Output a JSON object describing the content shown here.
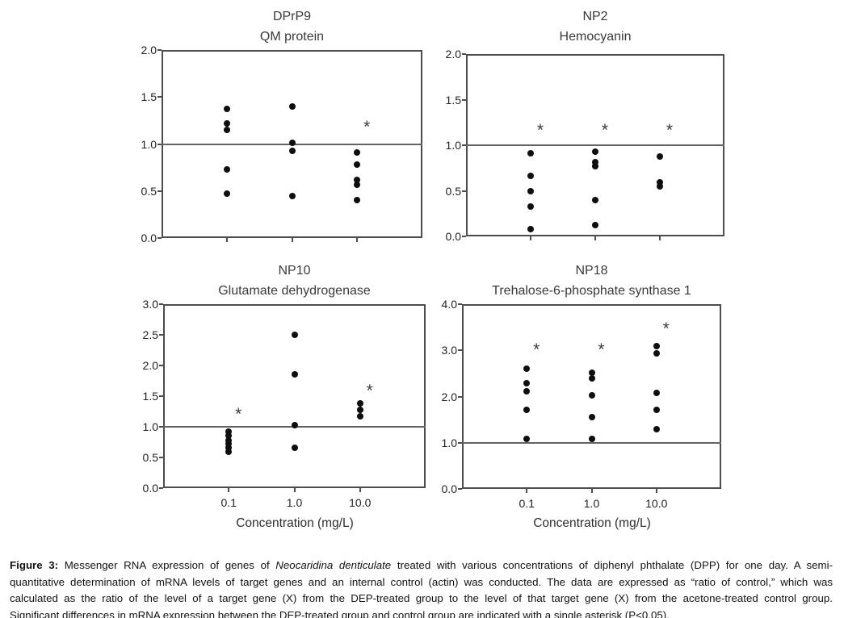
{
  "colors": {
    "background": "#ffffff",
    "axis": "#4d4d4d",
    "reference_line": "#636363",
    "dot": "#0e0e0e",
    "text": "#222222",
    "title": "#3a3a3a"
  },
  "chart_data": [
    {
      "id": "DPrP9",
      "type": "scatter",
      "title": "DPrP9",
      "subtitle": "QM protein",
      "categories": [
        "0.1",
        "1.0",
        "10.0"
      ],
      "ylim": [
        0.0,
        2.0
      ],
      "yticks": [
        0.0,
        0.5,
        1.0,
        1.5,
        2.0
      ],
      "ytick_labels": [
        "0.0",
        "0.5",
        "1.0",
        "1.5",
        "2.0"
      ],
      "reference_line": 1.0,
      "x_tick_labels_visible": false,
      "xlabel": "",
      "series": [
        {
          "category": "0.1",
          "values": [
            1.37,
            1.22,
            1.15,
            0.73,
            0.47
          ]
        },
        {
          "category": "1.0",
          "values": [
            1.4,
            1.01,
            0.93,
            0.45
          ]
        },
        {
          "category": "10.0",
          "values": [
            0.91,
            0.78,
            0.62,
            0.57,
            0.4
          ]
        }
      ],
      "asterisks": [
        {
          "category": "10.0",
          "y": 1.18
        }
      ]
    },
    {
      "id": "NP2",
      "type": "scatter",
      "title": "NP2",
      "subtitle": "Hemocyanin",
      "categories": [
        "0.1",
        "1.0",
        "10.0"
      ],
      "ylim": [
        0.0,
        2.0
      ],
      "yticks": [
        0.0,
        0.5,
        1.0,
        1.5,
        2.0
      ],
      "ytick_labels": [
        "0.0",
        "0.5",
        "1.0",
        "1.5",
        "2.0"
      ],
      "reference_line": 1.0,
      "x_tick_labels_visible": false,
      "xlabel": "",
      "series": [
        {
          "category": "0.1",
          "values": [
            0.91,
            0.66,
            0.5,
            0.33,
            0.08
          ]
        },
        {
          "category": "1.0",
          "values": [
            0.93,
            0.81,
            0.77,
            0.4,
            0.12
          ]
        },
        {
          "category": "10.0",
          "values": [
            0.88,
            0.59,
            0.55
          ]
        }
      ],
      "asterisks": [
        {
          "category": "0.1",
          "y": 1.16
        },
        {
          "category": "1.0",
          "y": 1.16
        },
        {
          "category": "10.0",
          "y": 1.16
        }
      ]
    },
    {
      "id": "NP10",
      "type": "scatter",
      "title": "NP10",
      "subtitle": "Glutamate dehydrogenase",
      "categories": [
        "0.1",
        "1.0",
        "10.0"
      ],
      "ylim": [
        0.0,
        3.0
      ],
      "yticks": [
        0.0,
        0.5,
        1.0,
        1.5,
        2.0,
        2.5,
        3.0
      ],
      "ytick_labels": [
        "0.0",
        "0.5",
        "1.0",
        "1.5",
        "2.0",
        "2.5",
        "3.0"
      ],
      "reference_line": 1.0,
      "x_tick_labels_visible": true,
      "xlabel": "Concentration (mg/L)",
      "series": [
        {
          "category": "0.1",
          "values": [
            0.92,
            0.85,
            0.78,
            0.72,
            0.66,
            0.59
          ]
        },
        {
          "category": "1.0",
          "values": [
            2.5,
            1.85,
            1.02,
            0.66
          ]
        },
        {
          "category": "10.0",
          "values": [
            1.38,
            1.27,
            1.17
          ]
        }
      ],
      "asterisks": [
        {
          "category": "0.1",
          "y": 1.2
        },
        {
          "category": "10.0",
          "y": 1.58
        }
      ]
    },
    {
      "id": "NP18",
      "type": "scatter",
      "title": "NP18",
      "subtitle": "Trehalose-6-phosphate synthase 1",
      "categories": [
        "0.1",
        "1.0",
        "10.0"
      ],
      "ylim": [
        0.0,
        4.0
      ],
      "yticks": [
        0.0,
        1.0,
        2.0,
        3.0,
        4.0
      ],
      "ytick_labels": [
        "0.0",
        "1.0",
        "2.0",
        "3.0",
        "4.0"
      ],
      "reference_line": 1.0,
      "x_tick_labels_visible": true,
      "xlabel": "Concentration (mg/L)",
      "series": [
        {
          "category": "0.1",
          "values": [
            2.6,
            2.28,
            2.12,
            1.72,
            1.08
          ]
        },
        {
          "category": "1.0",
          "values": [
            2.52,
            2.4,
            2.03,
            1.56,
            1.08
          ]
        },
        {
          "category": "10.0",
          "values": [
            3.09,
            2.93,
            2.08,
            1.71,
            1.29
          ]
        }
      ],
      "asterisks": [
        {
          "category": "0.1",
          "y": 3.0
        },
        {
          "category": "1.0",
          "y": 3.0
        },
        {
          "category": "10.0",
          "y": 3.45
        }
      ]
    }
  ],
  "caption": {
    "label": "Figure 3:",
    "line1_pre_italic": " Messenger RNA expression of genes of ",
    "line1_italic": "Neocaridina denticulate",
    "line1_post": " treated with various concentrations of diphenyl phthalate (DPP) for one day. A semi-",
    "line2": "quantitative determination of mRNA levels of target genes and an internal control (actin) was conducted. The data are expressed as “ratio of control,” which was",
    "line3": "calculated as the ratio of the level of a target gene (X) from the DEP-treated group to the level of that target gene (X) from the acetone-treated control group.",
    "line4": "Significant differences in mRNA expression between the DEP-treated group and control group are indicated with a single asterisk (P<0.05)."
  }
}
